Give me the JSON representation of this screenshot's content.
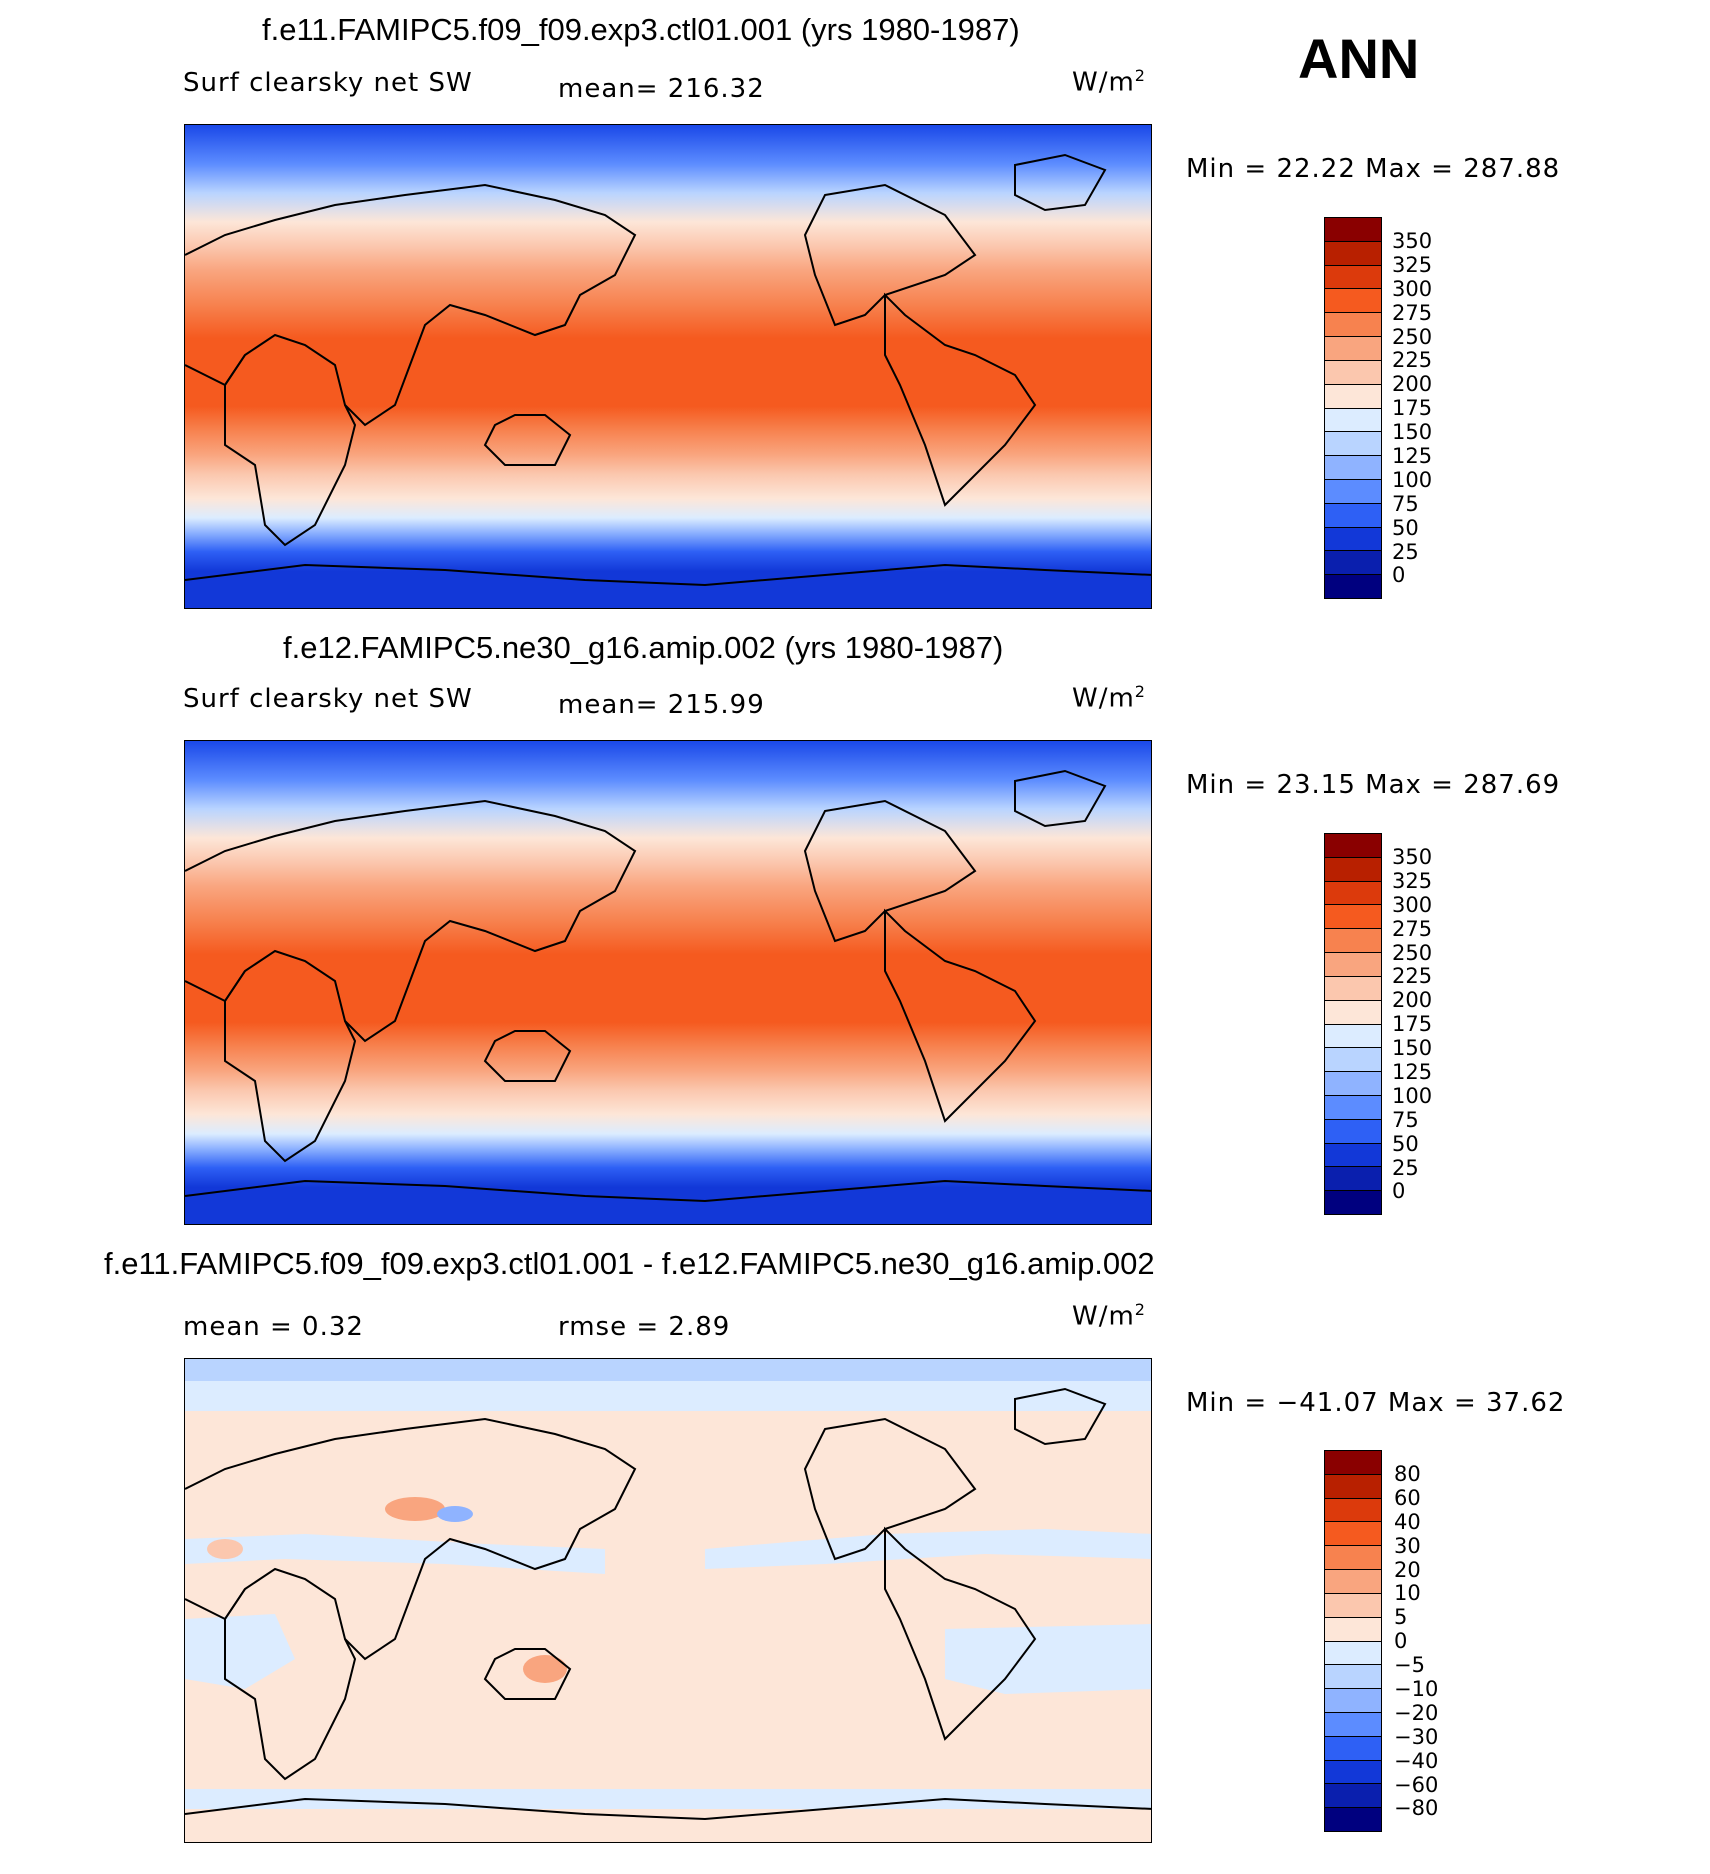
{
  "season": "ANN",
  "panels": [
    {
      "title": "f.e11.FAMIPC5.f09_f09.exp3.ctl01.001 (yrs 1980-1987)",
      "variable": "Surf clearsky net SW",
      "stat_left": "",
      "stat": "mean=  216.32",
      "units": "W/m",
      "units_exp": "2",
      "minmax": "Min =   22.22  Max  =  287.88"
    },
    {
      "title": "f.e12.FAMIPC5.ne30_g16.amip.002 (yrs 1980-1987)",
      "variable": "Surf clearsky net SW",
      "stat_left": "",
      "stat": "mean=  215.99",
      "units": "W/m",
      "units_exp": "2",
      "minmax": "Min =   23.15  Max  =  287.69"
    },
    {
      "title": "f.e11.FAMIPC5.f09_f09.exp3.ctl01.001 - f.e12.FAMIPC5.ne30_g16.amip.002",
      "variable": "",
      "stat_left": "mean =    0.32",
      "stat": "rmse =    2.89",
      "units": "W/m",
      "units_exp": "2",
      "minmax": "Min = −41.07  Max =   37.62"
    }
  ],
  "colorbars": {
    "absolute": {
      "labels": [
        "350",
        "325",
        "300",
        "275",
        "250",
        "225",
        "200",
        "175",
        "150",
        "125",
        "100",
        "75",
        "50",
        "25",
        "0"
      ],
      "colors": [
        "#8a0000",
        "#b82000",
        "#dc3a0c",
        "#f55a1f",
        "#f7824f",
        "#f9a57f",
        "#fbc7ae",
        "#fde6d8",
        "#dcecff",
        "#b9d4ff",
        "#8fb3ff",
        "#5c8cff",
        "#2e60f5",
        "#1238d8",
        "#0a1fae",
        "#00007f"
      ]
    },
    "difference": {
      "labels": [
        "80",
        "60",
        "40",
        "30",
        "20",
        "10",
        "5",
        "0",
        "−5",
        "−10",
        "−20",
        "−30",
        "−40",
        "−60",
        "−80"
      ],
      "colors": [
        "#8a0000",
        "#b82000",
        "#dc3a0c",
        "#f55a1f",
        "#f7824f",
        "#f9a57f",
        "#fbc7ae",
        "#fde6d8",
        "#dcecff",
        "#b9d4ff",
        "#8fb3ff",
        "#5c8cff",
        "#2e60f5",
        "#1238d8",
        "#0a1fae",
        "#00007f"
      ]
    }
  },
  "chart_data": [
    {
      "type": "heatmap",
      "title": "f.e11.FAMIPC5.f09_f09.exp3.ctl01.001 (yrs 1980-1987)",
      "variable": "Surf clearsky net SW",
      "units": "W/m2",
      "mean": 216.32,
      "min": 22.22,
      "max": 287.88,
      "contour_levels": [
        0,
        25,
        50,
        75,
        100,
        125,
        150,
        175,
        200,
        225,
        250,
        275,
        300,
        325,
        350
      ]
    },
    {
      "type": "heatmap",
      "title": "f.e12.FAMIPC5.ne30_g16.amip.002 (yrs 1980-1987)",
      "variable": "Surf clearsky net SW",
      "units": "W/m2",
      "mean": 215.99,
      "min": 23.15,
      "max": 287.69,
      "contour_levels": [
        0,
        25,
        50,
        75,
        100,
        125,
        150,
        175,
        200,
        225,
        250,
        275,
        300,
        325,
        350
      ]
    },
    {
      "type": "heatmap",
      "title": "f.e11.FAMIPC5.f09_f09.exp3.ctl01.001 - f.e12.FAMIPC5.ne30_g16.amip.002",
      "units": "W/m2",
      "mean": 0.32,
      "rmse": 2.89,
      "min": -41.07,
      "max": 37.62,
      "contour_levels": [
        -80,
        -60,
        -40,
        -30,
        -20,
        -10,
        -5,
        0,
        5,
        10,
        20,
        30,
        40,
        60,
        80
      ]
    }
  ]
}
